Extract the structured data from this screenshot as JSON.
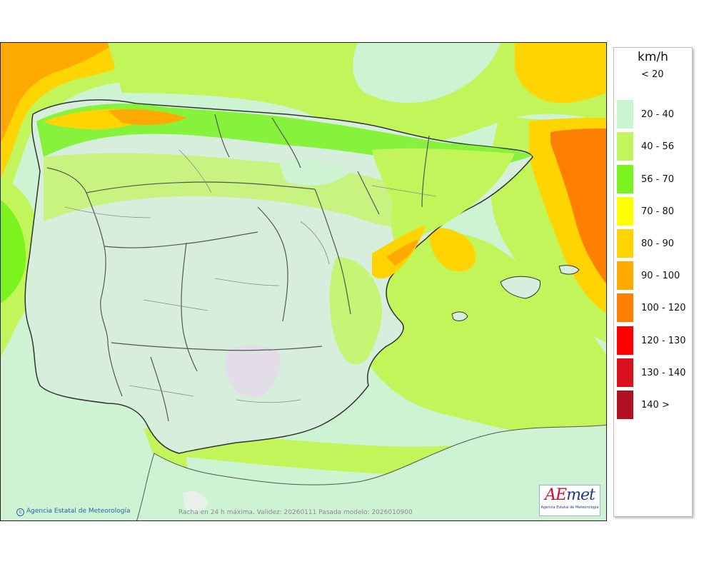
{
  "map": {
    "caption": "Racha en 24 h máxima. Validez: 20260111 Pasada modelo: 2026010900",
    "credit": "Agencia Estatal de Meteorología",
    "logo_word_a": "AE",
    "logo_word_b": "met",
    "logo_sub": "Agencia Estatal de Meteorología"
  },
  "legend": {
    "unit": "km/h",
    "classes": [
      {
        "label": "< 20",
        "color": "#ffffff"
      },
      {
        "label": "20 - 40",
        "color": "#c9f5cf"
      },
      {
        "label": "40 - 56",
        "color": "#c2f55a"
      },
      {
        "label": "56 - 70",
        "color": "#79f21e"
      },
      {
        "label": "70 - 80",
        "color": "#ffff00"
      },
      {
        "label": "80 - 90",
        "color": "#ffd400"
      },
      {
        "label": "90 - 100",
        "color": "#ffaa00"
      },
      {
        "label": "100 - 120",
        "color": "#ff8000"
      },
      {
        "label": "120 - 130",
        "color": "#ff0000"
      },
      {
        "label": "130 - 140",
        "color": "#d9101e"
      },
      {
        "label": "140 >",
        "color": "#b01020"
      }
    ]
  }
}
